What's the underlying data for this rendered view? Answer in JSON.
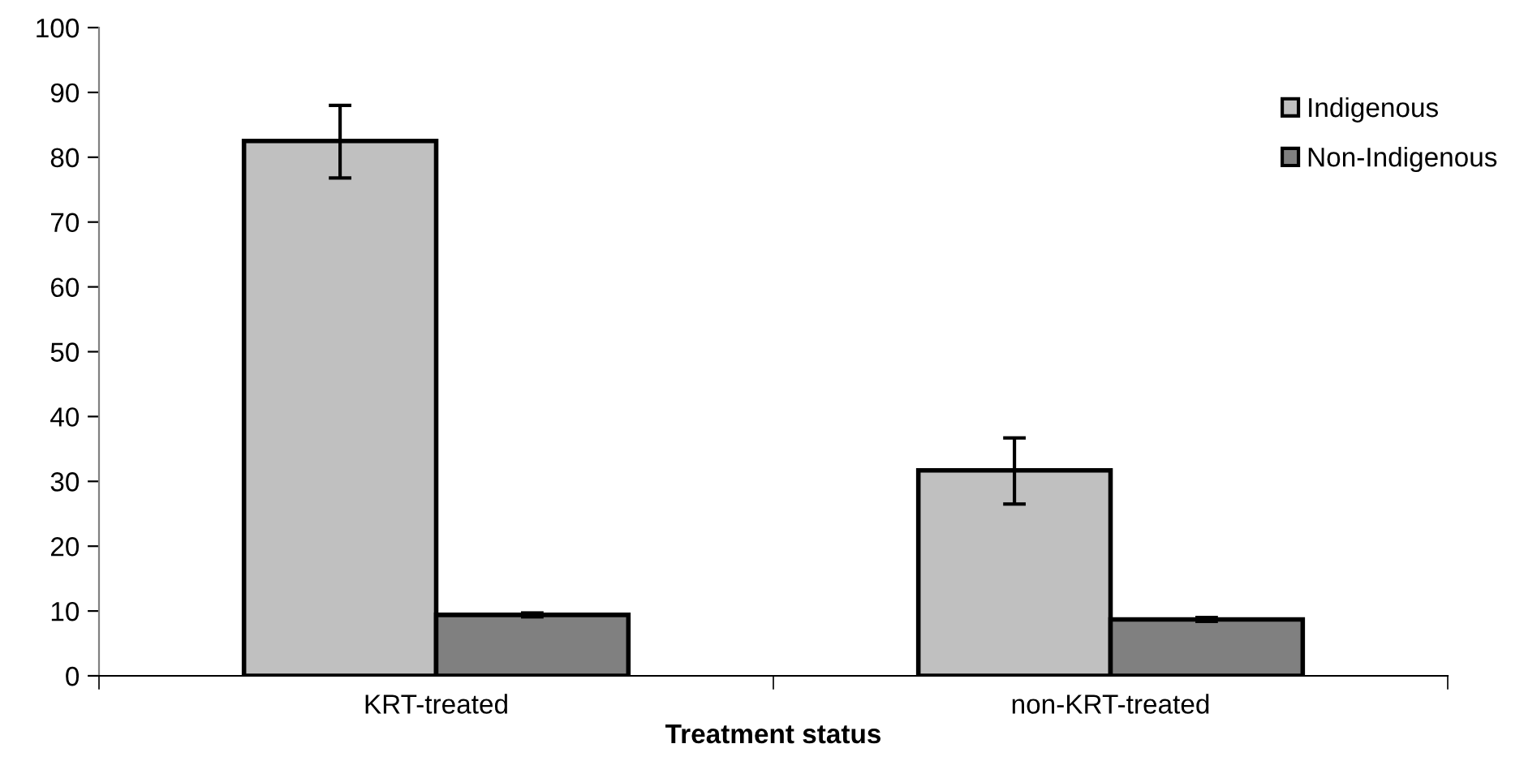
{
  "chart_data": {
    "type": "bar",
    "xlabel": "Treatment status",
    "categories": [
      "KRT-treated",
      "non-KRT-treated"
    ],
    "series": [
      {
        "name": "Indigenous",
        "color": "#c0c0c0",
        "values": [
          82.5,
          31.7
        ],
        "errors": [
          [
            76.8,
            88.0
          ],
          [
            26.5,
            36.7
          ]
        ]
      },
      {
        "name": "Non-Indigenous",
        "color": "#808080",
        "values": [
          9.4,
          8.7
        ],
        "errors": [
          0.3,
          0.3
        ]
      }
    ],
    "ylim": [
      0,
      100
    ],
    "yticks": [
      0,
      10,
      20,
      30,
      40,
      50,
      60,
      70,
      80,
      90,
      100
    ],
    "grid": false,
    "legend": "top right"
  }
}
